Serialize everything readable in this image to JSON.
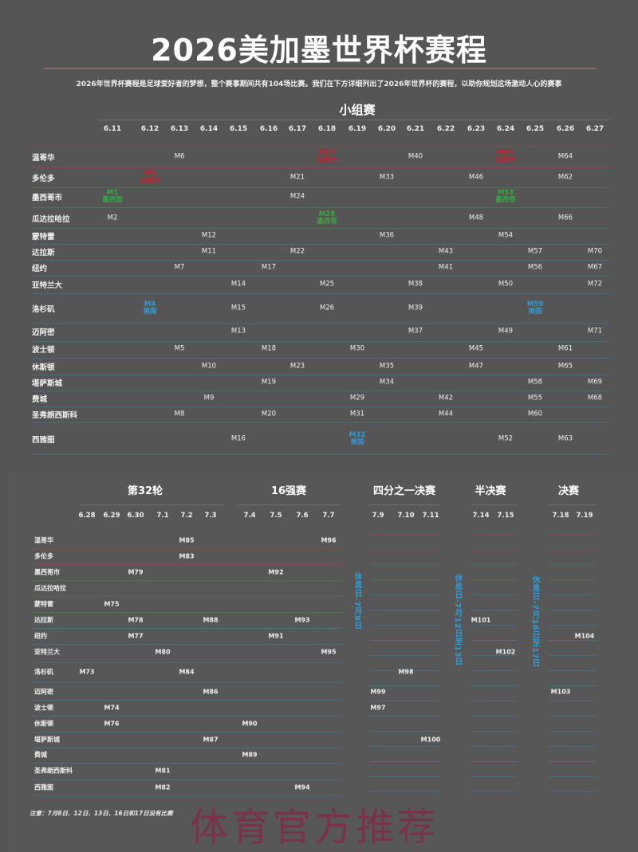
{
  "title": "2026美加墨世界杯赛程",
  "subtitle": "2026年世界杯赛程是足球爱好者的梦想，整个赛事期间共有104场比赛。我们在下方详细列出了2026年世界杯的赛程，以助你规划这场激动人心的赛事",
  "colors": {
    "canada": "#c8202e",
    "mexico": "#3aa845",
    "usa": "#2e9bd6",
    "background": "#555555"
  },
  "group_stage": {
    "label": "小组赛",
    "dates": [
      "6.11",
      "6.12",
      "6.13",
      "6.14",
      "6.15",
      "6.16",
      "6.17",
      "6.18",
      "6.19",
      "6.20",
      "6.21",
      "6.22",
      "6.23",
      "6.24",
      "6.25",
      "6.26",
      "6.27"
    ],
    "rows": [
      {
        "city": "温哥华",
        "host": "canada",
        "matches": [
          {
            "d": "6.13",
            "id": "M6"
          },
          {
            "d": "6.18",
            "id": "M27",
            "team": "加拿大",
            "c": "canada"
          },
          {
            "d": "6.21",
            "id": "M40"
          },
          {
            "d": "6.24",
            "id": "M51",
            "team": "加拿大",
            "c": "canada"
          },
          {
            "d": "6.26",
            "id": "M64"
          }
        ]
      },
      {
        "city": "多伦多",
        "host": "canada",
        "matches": [
          {
            "d": "6.12",
            "id": "M3",
            "team": "加拿大",
            "c": "canada"
          },
          {
            "d": "6.17",
            "id": "M21"
          },
          {
            "d": "6.20",
            "id": "M33"
          },
          {
            "d": "6.23",
            "id": "M46"
          },
          {
            "d": "6.26",
            "id": "M62"
          }
        ]
      },
      {
        "city": "墨西哥市",
        "host": "mexico",
        "matches": [
          {
            "d": "6.11",
            "id": "M1",
            "team": "墨西哥",
            "c": "mexico"
          },
          {
            "d": "6.17",
            "id": "M24"
          },
          {
            "d": "6.24",
            "id": "M53",
            "team": "墨西哥",
            "c": "mexico"
          }
        ]
      },
      {
        "city": "瓜达拉哈拉",
        "host": "mexico",
        "matches": [
          {
            "d": "6.11",
            "id": "M2"
          },
          {
            "d": "6.18",
            "id": "M28",
            "team": "墨西哥",
            "c": "mexico"
          },
          {
            "d": "6.23",
            "id": "M48"
          },
          {
            "d": "6.26",
            "id": "M66"
          }
        ]
      },
      {
        "city": "蒙特雷",
        "host": "mexico",
        "matches": [
          {
            "d": "6.14",
            "id": "M12"
          },
          {
            "d": "6.20",
            "id": "M36"
          },
          {
            "d": "6.24",
            "id": "M54"
          }
        ]
      },
      {
        "city": "达拉斯",
        "host": "usa",
        "matches": [
          {
            "d": "6.14",
            "id": "M11"
          },
          {
            "d": "6.17",
            "id": "M22"
          },
          {
            "d": "6.22",
            "id": "M43"
          },
          {
            "d": "6.25",
            "id": "M57"
          },
          {
            "d": "6.27",
            "id": "M70"
          }
        ]
      },
      {
        "city": "纽约",
        "host": "usa",
        "matches": [
          {
            "d": "6.13",
            "id": "M7"
          },
          {
            "d": "6.16",
            "id": "M17"
          },
          {
            "d": "6.22",
            "id": "M41"
          },
          {
            "d": "6.25",
            "id": "M56"
          },
          {
            "d": "6.27",
            "id": "M67"
          }
        ]
      },
      {
        "city": "亚特兰大",
        "host": "usa",
        "matches": [
          {
            "d": "6.15",
            "id": "M14"
          },
          {
            "d": "6.18",
            "id": "M25"
          },
          {
            "d": "6.21",
            "id": "M38"
          },
          {
            "d": "6.24",
            "id": "M50"
          },
          {
            "d": "6.27",
            "id": "M72"
          }
        ]
      },
      {
        "city": "洛杉矶",
        "host": "usa",
        "matches": [
          {
            "d": "6.12",
            "id": "M4",
            "team": "美国",
            "c": "usa"
          },
          {
            "d": "6.15",
            "id": "M15"
          },
          {
            "d": "6.18",
            "id": "M26"
          },
          {
            "d": "6.21",
            "id": "M39"
          },
          {
            "d": "6.25",
            "id": "M59",
            "team": "美国",
            "c": "usa"
          }
        ]
      },
      {
        "city": "迈阿密",
        "host": "usa",
        "matches": [
          {
            "d": "6.15",
            "id": "M13"
          },
          {
            "d": "6.21",
            "id": "M37"
          },
          {
            "d": "6.24",
            "id": "M49"
          },
          {
            "d": "6.27",
            "id": "M71"
          }
        ]
      },
      {
        "city": "波士顿",
        "host": "usa",
        "matches": [
          {
            "d": "6.13",
            "id": "M5"
          },
          {
            "d": "6.16",
            "id": "M18"
          },
          {
            "d": "6.19",
            "id": "M30"
          },
          {
            "d": "6.23",
            "id": "M45"
          },
          {
            "d": "6.26",
            "id": "M61"
          }
        ]
      },
      {
        "city": "休斯顿",
        "host": "usa",
        "matches": [
          {
            "d": "6.14",
            "id": "M10"
          },
          {
            "d": "6.17",
            "id": "M23"
          },
          {
            "d": "6.20",
            "id": "M35"
          },
          {
            "d": "6.23",
            "id": "M47"
          },
          {
            "d": "6.26",
            "id": "M65"
          }
        ]
      },
      {
        "city": "堪萨斯城",
        "host": "usa",
        "matches": [
          {
            "d": "6.16",
            "id": "M19"
          },
          {
            "d": "6.20",
            "id": "M34"
          },
          {
            "d": "6.25",
            "id": "M58"
          },
          {
            "d": "6.27",
            "id": "M69"
          }
        ]
      },
      {
        "city": "费城",
        "host": "usa",
        "matches": [
          {
            "d": "6.14",
            "id": "M9"
          },
          {
            "d": "6.19",
            "id": "M29"
          },
          {
            "d": "6.22",
            "id": "M42"
          },
          {
            "d": "6.25",
            "id": "M55"
          },
          {
            "d": "6.27",
            "id": "M68"
          }
        ]
      },
      {
        "city": "圣弗朗西斯科",
        "host": "usa",
        "matches": [
          {
            "d": "6.13",
            "id": "M8"
          },
          {
            "d": "6.16",
            "id": "M20"
          },
          {
            "d": "6.19",
            "id": "M31"
          },
          {
            "d": "6.22",
            "id": "M44"
          },
          {
            "d": "6.25",
            "id": "M60"
          }
        ]
      },
      {
        "city": "西雅图",
        "host": "usa",
        "matches": [
          {
            "d": "6.15",
            "id": "M16"
          },
          {
            "d": "6.19",
            "id": "M32",
            "team": "美国",
            "c": "usa"
          },
          {
            "d": "6.24",
            "id": "M52"
          },
          {
            "d": "6.26",
            "id": "M63"
          }
        ]
      }
    ]
  },
  "knockout": {
    "rounds": [
      {
        "label": "第32轮",
        "dates": [
          "6.28",
          "6.29",
          "6.30",
          "7.1",
          "7.2",
          "7.3"
        ]
      },
      {
        "label": "16强赛",
        "dates": [
          "7.4",
          "7.5",
          "7.6",
          "7.7"
        ]
      },
      {
        "label": "四分之一决赛",
        "dates": [
          "7.9",
          "7.10",
          "7.11"
        ]
      },
      {
        "label": "半决赛",
        "dates": [
          "7.14",
          "7.15"
        ]
      },
      {
        "label": "决赛",
        "dates": [
          "7.18",
          "7.19"
        ]
      }
    ],
    "cities": [
      "温哥华",
      "多伦多",
      "墨西哥市",
      "瓜达拉哈拉",
      "蒙特雷",
      "达拉斯",
      "纽约",
      "亚特兰大",
      "洛杉矶",
      "迈阿密",
      "波士顿",
      "休斯顿",
      "堪萨斯城",
      "费城",
      "圣弗朗西斯科",
      "西雅图"
    ],
    "matches": [
      {
        "d": "7.2",
        "city": "温哥华",
        "id": "M85"
      },
      {
        "d": "7.7",
        "city": "温哥华",
        "id": "M96"
      },
      {
        "d": "7.2",
        "city": "多伦多",
        "id": "M83"
      },
      {
        "d": "6.30",
        "city": "墨西哥市",
        "id": "M79"
      },
      {
        "d": "7.5",
        "city": "墨西哥市",
        "id": "M92"
      },
      {
        "d": "6.29",
        "city": "蒙特雷",
        "id": "M75"
      },
      {
        "d": "6.30",
        "city": "达拉斯",
        "id": "M78"
      },
      {
        "d": "7.3",
        "city": "达拉斯",
        "id": "M88"
      },
      {
        "d": "7.6",
        "city": "达拉斯",
        "id": "M93"
      },
      {
        "d": "6.30",
        "city": "纽约",
        "id": "M77"
      },
      {
        "d": "7.5",
        "city": "纽约",
        "id": "M91"
      },
      {
        "d": "7.1",
        "city": "亚特兰大",
        "id": "M80"
      },
      {
        "d": "7.7",
        "city": "亚特兰大",
        "id": "M95"
      },
      {
        "d": "6.28",
        "city": "洛杉矶",
        "id": "M73"
      },
      {
        "d": "7.2",
        "city": "洛杉矶",
        "id": "M84"
      },
      {
        "d": "7.3",
        "city": "迈阿密",
        "id": "M86"
      },
      {
        "d": "6.29",
        "city": "波士顿",
        "id": "M74"
      },
      {
        "d": "6.29",
        "city": "休斯顿",
        "id": "M76"
      },
      {
        "d": "7.4",
        "city": "休斯顿",
        "id": "M90"
      },
      {
        "d": "7.3",
        "city": "堪萨斯城",
        "id": "M87"
      },
      {
        "d": "7.4",
        "city": "费城",
        "id": "M89"
      },
      {
        "d": "7.1",
        "city": "圣弗朗西斯科",
        "id": "M81"
      },
      {
        "d": "7.1",
        "city": "西雅图",
        "id": "M82"
      },
      {
        "d": "7.6",
        "city": "西雅图",
        "id": "M94"
      },
      {
        "d": "7.10",
        "city": "洛杉矶",
        "id": "M98"
      },
      {
        "d": "7.9",
        "city": "迈阿密",
        "id": "M99"
      },
      {
        "d": "7.9",
        "city": "波士顿",
        "id": "M97"
      },
      {
        "d": "7.11",
        "city": "堪萨斯城",
        "id": "M100"
      },
      {
        "d": "7.14",
        "city": "达拉斯",
        "id": "M101"
      },
      {
        "d": "7.15",
        "city": "亚特兰大",
        "id": "M102"
      },
      {
        "d": "7.19",
        "city": "纽约",
        "id": "M104"
      },
      {
        "d": "7.18",
        "city": "迈阿密",
        "id": "M103"
      }
    ],
    "rest_days": [
      "休息日-7月8日",
      "休息日-7月12日至13日",
      "休息日-7月16日至17日"
    ]
  },
  "note": "注意：7月8日、12日、13日、16日和17日没有比赛",
  "watermark": "体育官方推荐"
}
